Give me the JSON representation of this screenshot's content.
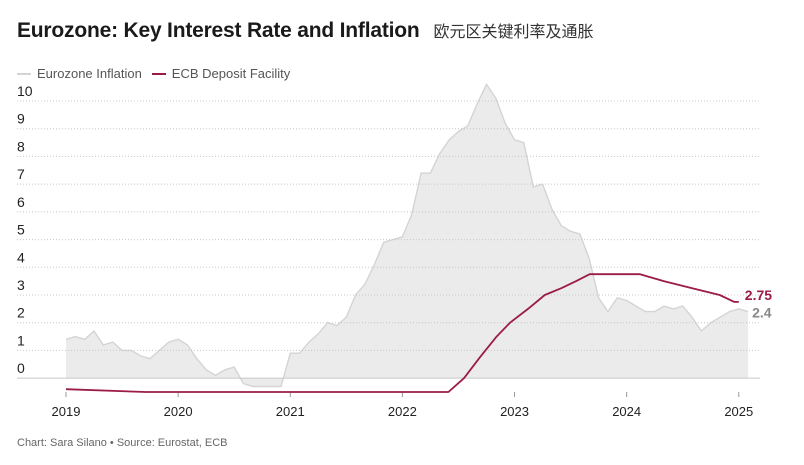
{
  "header": {
    "title": "Eurozone: Key Interest Rate and Inflation",
    "subtitle": "欧元区关键利率及通胀"
  },
  "colors": {
    "inflation_fill": "#ebebeb",
    "inflation_line": "#d4d4d4",
    "inflation_label": "#888888",
    "deposit_line": "#9b1b45",
    "grid": "#c8c8c8",
    "text": "#222222"
  },
  "footer": {
    "credit": "Chart: Sara Silano • Source: Eurostat, ECB"
  },
  "chart_data": {
    "type": "line",
    "title": "Eurozone: Key Interest Rate and Inflation",
    "xlabel": "",
    "ylabel": "",
    "ylim": [
      -0.5,
      10
    ],
    "xlim": [
      2019.0,
      2025.1
    ],
    "grid": true,
    "legend_position": "top-left",
    "y_ticks": [
      "10",
      "9",
      "8",
      "7",
      "6",
      "5",
      "4",
      "3",
      "2",
      "1",
      "0"
    ],
    "x_ticks": [
      "2019",
      "2020",
      "2021",
      "2022",
      "2023",
      "2024",
      "2025"
    ],
    "series": [
      {
        "name": "Eurozone Inflation",
        "style": "area",
        "end_label": "2.4",
        "x": [
          2019.0,
          2019.083,
          2019.167,
          2019.25,
          2019.333,
          2019.417,
          2019.5,
          2019.583,
          2019.667,
          2019.75,
          2019.833,
          2019.917,
          2020.0,
          2020.083,
          2020.167,
          2020.25,
          2020.333,
          2020.417,
          2020.5,
          2020.583,
          2020.667,
          2020.75,
          2020.833,
          2020.917,
          2021.0,
          2021.083,
          2021.167,
          2021.25,
          2021.333,
          2021.417,
          2021.5,
          2021.583,
          2021.667,
          2021.75,
          2021.833,
          2021.917,
          2022.0,
          2022.083,
          2022.167,
          2022.25,
          2022.333,
          2022.417,
          2022.5,
          2022.583,
          2022.667,
          2022.75,
          2022.833,
          2022.917,
          2023.0,
          2023.083,
          2023.167,
          2023.25,
          2023.333,
          2023.417,
          2023.5,
          2023.583,
          2023.667,
          2023.75,
          2023.833,
          2023.917,
          2024.0,
          2024.083,
          2024.167,
          2024.25,
          2024.333,
          2024.417,
          2024.5,
          2024.583,
          2024.667,
          2024.75,
          2024.833,
          2024.917,
          2025.0,
          2025.083
        ],
        "values": [
          1.4,
          1.5,
          1.4,
          1.7,
          1.2,
          1.3,
          1.0,
          1.0,
          0.8,
          0.7,
          1.0,
          1.3,
          1.4,
          1.2,
          0.7,
          0.3,
          0.1,
          0.3,
          0.4,
          -0.2,
          -0.3,
          -0.3,
          -0.3,
          -0.3,
          0.9,
          0.9,
          1.3,
          1.6,
          2.0,
          1.9,
          2.2,
          3.0,
          3.4,
          4.1,
          4.9,
          5.0,
          5.1,
          5.9,
          7.4,
          7.4,
          8.1,
          8.6,
          8.9,
          9.1,
          9.9,
          10.6,
          10.1,
          9.2,
          8.6,
          8.5,
          6.9,
          7.0,
          6.1,
          5.5,
          5.3,
          5.2,
          4.3,
          2.9,
          2.4,
          2.9,
          2.8,
          2.6,
          2.4,
          2.4,
          2.6,
          2.5,
          2.6,
          2.2,
          1.7,
          2.0,
          2.2,
          2.4,
          2.5,
          2.4
        ]
      },
      {
        "name": "ECB Deposit Facility",
        "style": "step",
        "end_label": "2.75",
        "x": [
          2019.0,
          2019.71,
          2022.41,
          2022.55,
          2022.69,
          2022.84,
          2022.96,
          2023.12,
          2023.27,
          2023.42,
          2023.55,
          2023.67,
          2024.12,
          2024.33,
          2024.58,
          2024.83,
          2024.96,
          2025.0
        ],
        "values": [
          -0.4,
          -0.5,
          -0.5,
          0.0,
          0.75,
          1.5,
          2.0,
          2.5,
          3.0,
          3.25,
          3.5,
          3.75,
          3.75,
          3.5,
          3.25,
          3.0,
          2.75,
          2.75
        ]
      }
    ]
  }
}
